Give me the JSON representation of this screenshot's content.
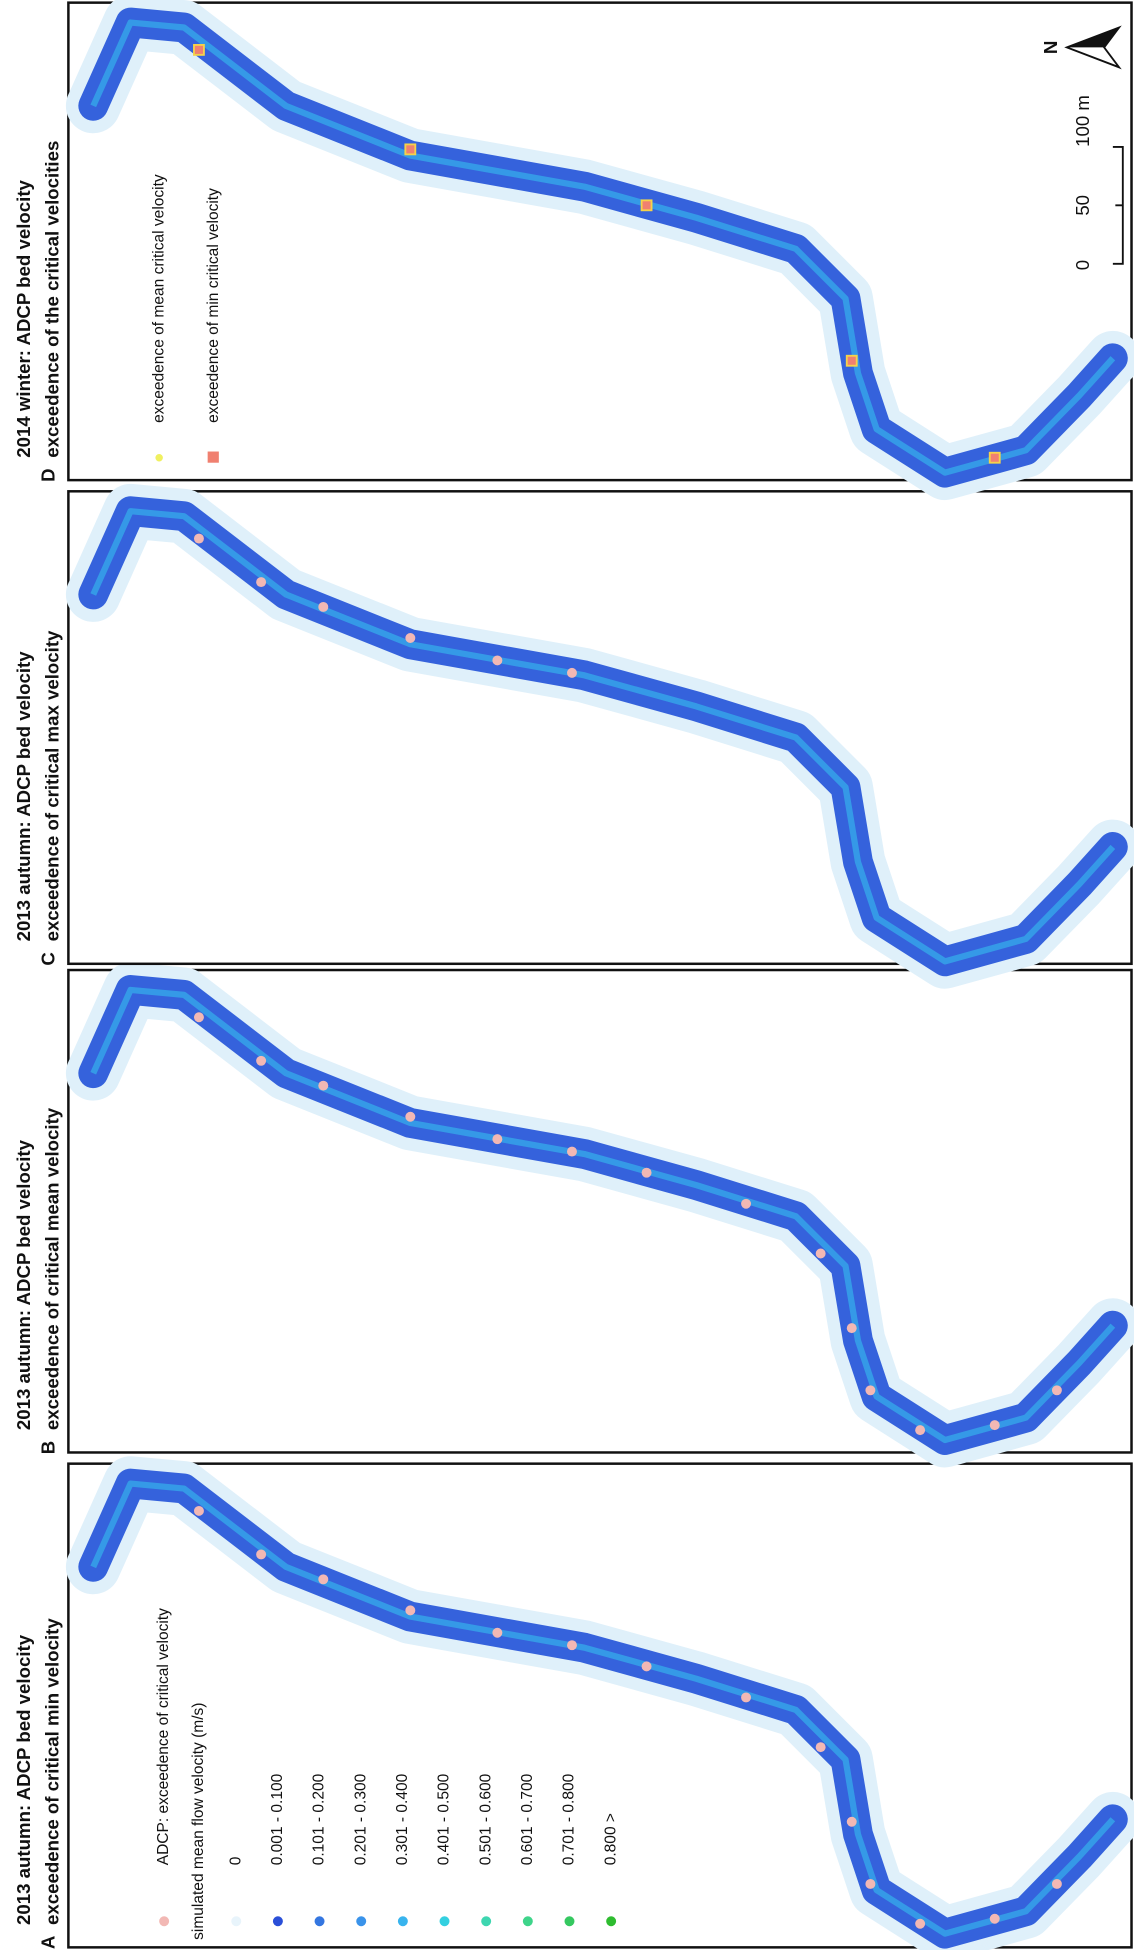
{
  "panels": [
    {
      "letter": "A",
      "title": [
        "2013 autumn: ADCP bed velocity",
        "exceedence of critical min velocity"
      ]
    },
    {
      "letter": "B",
      "title": [
        "2013 autumn: ADCP bed velocity",
        "exceedence of critical mean velocity"
      ]
    },
    {
      "letter": "C",
      "title": [
        "2013 autumn: ADCP bed velocity",
        "exceedence of critical max velocity"
      ]
    },
    {
      "letter": "D",
      "title": [
        "2014 winter: ADCP bed velocity",
        "exceedence of the critical velocities"
      ]
    }
  ],
  "legend_a": {
    "adcp": "ADCP: exceedence of critical velocity",
    "heading": "simulated mean flow velocity (m/s)",
    "classes": [
      "0",
      "0.001 - 0.100",
      "0.101 - 0.200",
      "0.201 - 0.300",
      "0.301 - 0.400",
      "0.401 - 0.500",
      "0.501 - 0.600",
      "0.601 - 0.700",
      "0.701 - 0.800",
      "0.800 >"
    ]
  },
  "legend_d": [
    "exceedence of mean critical velocity",
    "exceedence of min critical velocity"
  ],
  "scale_bar": [
    "0",
    "50",
    "100 m"
  ],
  "north": "N"
}
